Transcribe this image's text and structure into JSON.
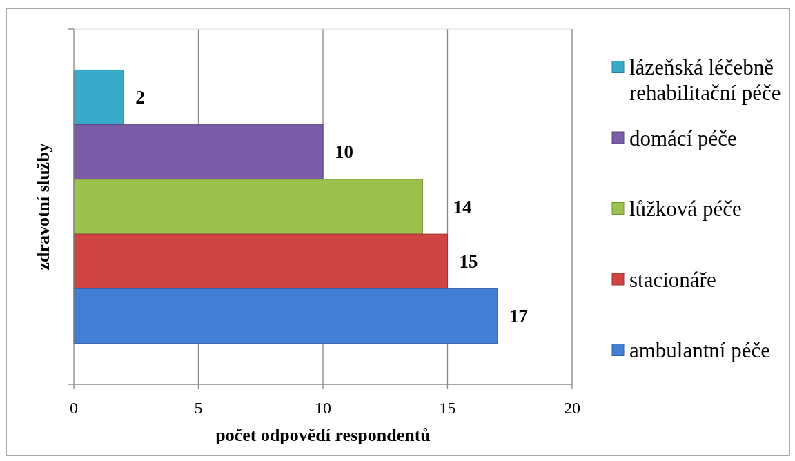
{
  "chart_data": {
    "type": "bar",
    "orientation": "horizontal",
    "xlabel": "počet odpovědí respondentů",
    "ylabel": "zdravotní služby",
    "categories": [
      null
    ],
    "series": [
      {
        "name": "lázeňská léčebně rehabilitační péče",
        "color": "#38abcb",
        "values": [
          2
        ]
      },
      {
        "name": "domácí péče",
        "color": "#7b5ca8",
        "values": [
          10
        ]
      },
      {
        "name": "lůžková péče",
        "color": "#9cc24e",
        "values": [
          14
        ]
      },
      {
        "name": "stacionáře",
        "color": "#d04543",
        "values": [
          15
        ]
      },
      {
        "name": "ambulantní péče",
        "color": "#4280d5",
        "values": [
          17
        ]
      }
    ],
    "xlim": [
      0,
      20
    ],
    "xticks": [
      0,
      5,
      10,
      15,
      20
    ],
    "grid": "x",
    "legend": "right",
    "data_labels": true
  }
}
